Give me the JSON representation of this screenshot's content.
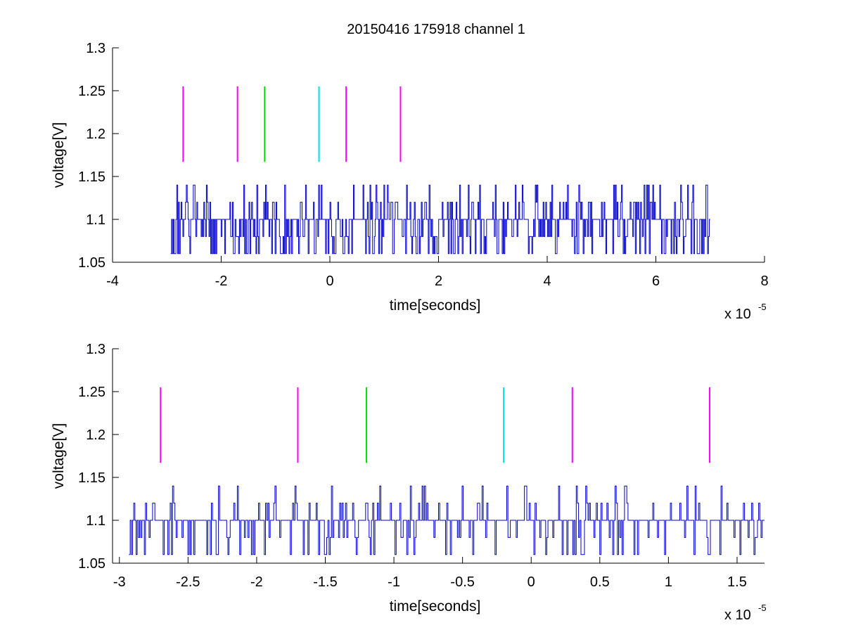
{
  "figure": {
    "title": "20150416 175918 channel 1"
  },
  "colors": {
    "trace": "#0000cc",
    "magenta": "#ff00ff",
    "green": "#00e000",
    "cyan": "#00e0e0",
    "axis": "#000000"
  },
  "chart_data": [
    {
      "type": "line",
      "title": "20150416 175918 channel 1",
      "xlabel": "time[seconds]",
      "ylabel": "voltage[V]",
      "x_exponent_label": "x 10",
      "x_exponent": "-5",
      "xlim": [
        -4,
        8
      ],
      "ylim": [
        1.05,
        1.3
      ],
      "xticks": [
        "-4",
        "-2",
        "0",
        "2",
        "4",
        "6",
        "8"
      ],
      "yticks": [
        "1.05",
        "1.1",
        "1.15",
        "1.2",
        "1.25",
        "1.3"
      ],
      "grid": false,
      "series": [
        {
          "color": "blue",
          "x_range": [
            -2.93,
            7.0
          ],
          "levels": [
            1.06,
            1.08,
            1.1,
            1.12,
            1.14
          ],
          "baseline": 1.1,
          "description": "noisy digitized trace"
        }
      ],
      "markers": [
        {
          "x": -2.7,
          "y1": 1.167,
          "y2": 1.255,
          "color": "magenta"
        },
        {
          "x": -1.7,
          "y1": 1.167,
          "y2": 1.255,
          "color": "magenta"
        },
        {
          "x": -1.2,
          "y1": 1.167,
          "y2": 1.255,
          "color": "green"
        },
        {
          "x": -0.2,
          "y1": 1.167,
          "y2": 1.255,
          "color": "cyan"
        },
        {
          "x": 0.3,
          "y1": 1.167,
          "y2": 1.255,
          "color": "magenta"
        },
        {
          "x": 1.3,
          "y1": 1.167,
          "y2": 1.255,
          "color": "magenta"
        }
      ]
    },
    {
      "type": "line",
      "xlabel": "time[seconds]",
      "ylabel": "voltage[V]",
      "x_exponent_label": "x 10",
      "x_exponent": "-5",
      "xlim": [
        -3.05,
        1.7
      ],
      "ylim": [
        1.05,
        1.3
      ],
      "xticks": [
        "-3",
        "-2.5",
        "-2",
        "-1.5",
        "-1",
        "-0.5",
        "0",
        "0.5",
        "1",
        "1.5"
      ],
      "yticks": [
        "1.05",
        "1.1",
        "1.15",
        "1.2",
        "1.25",
        "1.3"
      ],
      "grid": false,
      "series": [
        {
          "color": "blue",
          "x_range": [
            -2.93,
            1.7
          ],
          "levels": [
            1.06,
            1.08,
            1.1,
            1.12,
            1.14
          ],
          "baseline": 1.1,
          "description": "noisy digitized trace (zoom)"
        }
      ],
      "markers": [
        {
          "x": -2.7,
          "y1": 1.167,
          "y2": 1.255,
          "color": "magenta"
        },
        {
          "x": -1.7,
          "y1": 1.167,
          "y2": 1.255,
          "color": "magenta"
        },
        {
          "x": -1.2,
          "y1": 1.167,
          "y2": 1.255,
          "color": "green"
        },
        {
          "x": -0.2,
          "y1": 1.167,
          "y2": 1.255,
          "color": "cyan"
        },
        {
          "x": 0.3,
          "y1": 1.167,
          "y2": 1.255,
          "color": "magenta"
        },
        {
          "x": 1.3,
          "y1": 1.167,
          "y2": 1.255,
          "color": "magenta"
        }
      ]
    }
  ]
}
